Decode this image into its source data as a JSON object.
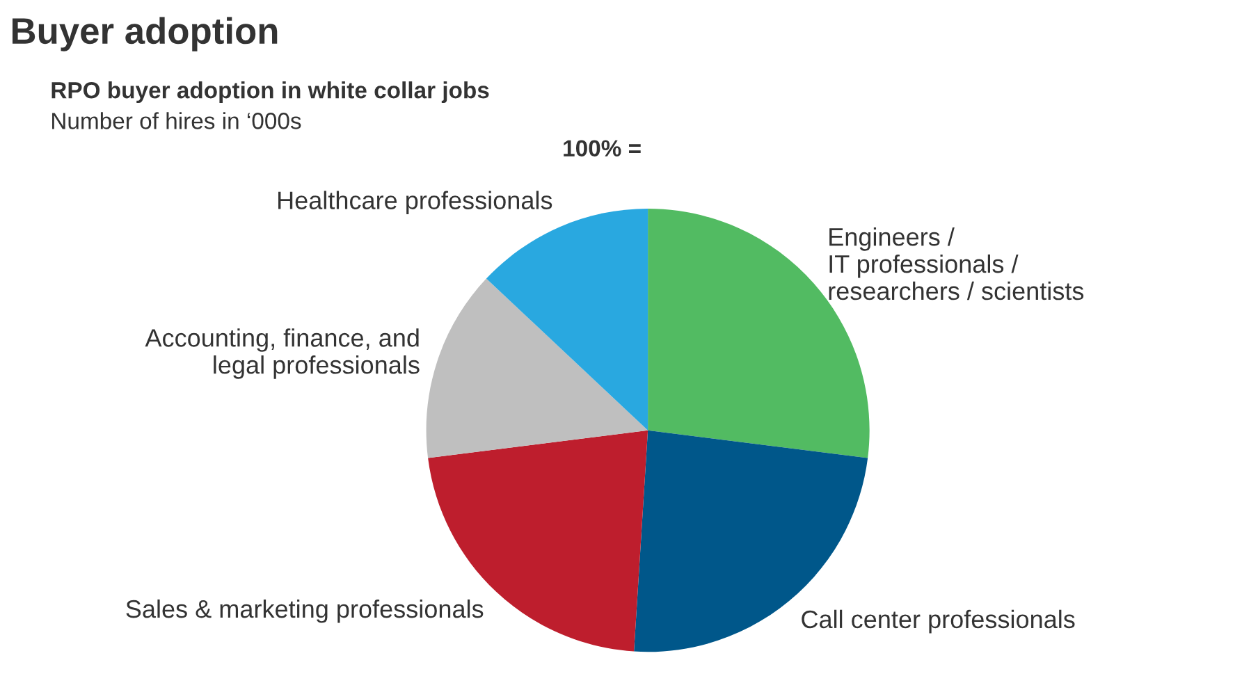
{
  "chart_data": {
    "type": "pie",
    "title": "Buyer adoption",
    "subtitle": "RPO buyer adoption in white collar jobs",
    "annotations": [
      "Number of hires in ‘000s",
      "100% ="
    ],
    "categories": [
      "Engineers /\nIT professionals /\nresearchers / scientists",
      "Call center professionals",
      "Sales & marketing professionals",
      "Accounting, finance, and\nlegal professionals",
      "Healthcare professionals"
    ],
    "values": [
      27,
      24,
      22,
      14,
      13
    ],
    "colors": [
      "#52bb62",
      "#00578a",
      "#be1e2d",
      "#bfbfbf",
      "#29a8e0"
    ],
    "legend": false
  }
}
